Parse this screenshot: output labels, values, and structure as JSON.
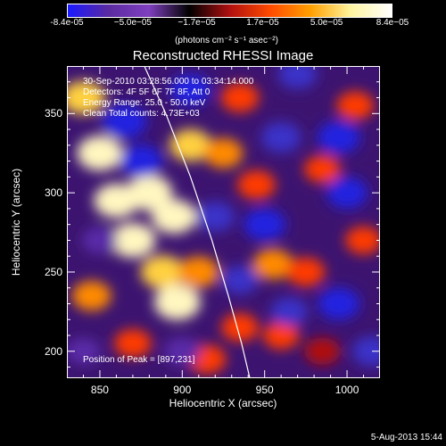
{
  "chart_data": {
    "type": "heatmap",
    "title": "Reconstructed RHESSI Image",
    "xlabel": "Heliocentric X (arcsec)",
    "ylabel": "Heliocentric Y (arcsec)",
    "xlim": [
      830,
      1020
    ],
    "ylim": [
      183,
      380
    ],
    "x_ticks": [
      "850",
      "900",
      "950",
      "1000"
    ],
    "y_ticks": [
      "200",
      "250",
      "300",
      "350"
    ],
    "x_tick_values": [
      850,
      900,
      950,
      1000
    ],
    "y_tick_values": [
      200,
      250,
      300,
      350
    ],
    "colorbar": {
      "tick_labels": [
        "-8.4e-05",
        "−5.0e−05",
        "−1.7e−05",
        "1.7e−05",
        "5.0e−05",
        "8.4e−05"
      ],
      "tick_values": [
        -8.4e-05,
        -5e-05,
        -1.7e-05,
        1.7e-05,
        5e-05,
        8.4e-05
      ],
      "range": [
        -8.4e-05,
        8.4e-05
      ],
      "unit": "(photons cm⁻² s⁻¹ asec⁻²)",
      "colors": [
        "#1a1aff",
        "#5a2aa0",
        "#8040c0",
        "#000000",
        "#b01010",
        "#ff4a00",
        "#ffa000",
        "#fff5a0",
        "#ffffff"
      ]
    },
    "annotations": [
      "30-Sep-2010 03:28:56.000 to 03:34:14.000",
      "Detectors: 4F 5F 6F 7F 8F, Att 0",
      "Energy Range: 25.0 - 50.0 keV",
      "Clean     Total counts: 4.73E+03"
    ],
    "peak_label": "Position of Peak = [897,231]",
    "peak_position": [
      897,
      231
    ],
    "limb_curve": {
      "x": [
        877,
        890,
        905,
        918,
        928,
        936,
        941
      ],
      "y": [
        380,
        350,
        310,
        270,
        235,
        205,
        183
      ]
    },
    "blobs": [
      {
        "x": 840,
        "y": 360,
        "v": 0.85
      },
      {
        "x": 850,
        "y": 325,
        "v": 0.95
      },
      {
        "x": 860,
        "y": 295,
        "v": 0.9
      },
      {
        "x": 870,
        "y": 270,
        "v": 0.95
      },
      {
        "x": 880,
        "y": 300,
        "v": 1.0
      },
      {
        "x": 895,
        "y": 285,
        "v": 0.9
      },
      {
        "x": 888,
        "y": 250,
        "v": 0.85
      },
      {
        "x": 897,
        "y": 231,
        "v": 1.0
      },
      {
        "x": 910,
        "y": 250,
        "v": 0.7
      },
      {
        "x": 905,
        "y": 330,
        "v": 0.75
      },
      {
        "x": 925,
        "y": 325,
        "v": 0.6
      },
      {
        "x": 935,
        "y": 360,
        "v": 0.55
      },
      {
        "x": 945,
        "y": 305,
        "v": 0.55
      },
      {
        "x": 955,
        "y": 255,
        "v": 0.65
      },
      {
        "x": 975,
        "y": 250,
        "v": 0.55
      },
      {
        "x": 935,
        "y": 215,
        "v": 0.5
      },
      {
        "x": 870,
        "y": 205,
        "v": 0.5
      },
      {
        "x": 985,
        "y": 315,
        "v": 0.45
      },
      {
        "x": 1005,
        "y": 355,
        "v": 0.5
      },
      {
        "x": 1010,
        "y": 270,
        "v": 0.45
      },
      {
        "x": 960,
        "y": 210,
        "v": 0.45
      },
      {
        "x": 845,
        "y": 235,
        "v": 0.6
      },
      {
        "x": 915,
        "y": 195,
        "v": 0.55
      },
      {
        "x": 985,
        "y": 200,
        "v": 0.4
      },
      {
        "x": 865,
        "y": 345,
        "v": -0.9
      },
      {
        "x": 875,
        "y": 320,
        "v": -0.8
      },
      {
        "x": 905,
        "y": 365,
        "v": -0.7
      },
      {
        "x": 920,
        "y": 285,
        "v": -0.6
      },
      {
        "x": 950,
        "y": 280,
        "v": -0.75
      },
      {
        "x": 960,
        "y": 335,
        "v": -0.65
      },
      {
        "x": 995,
        "y": 335,
        "v": -0.8
      },
      {
        "x": 1000,
        "y": 300,
        "v": -0.7
      },
      {
        "x": 995,
        "y": 230,
        "v": -0.75
      },
      {
        "x": 970,
        "y": 375,
        "v": -0.6
      },
      {
        "x": 935,
        "y": 245,
        "v": -0.5
      },
      {
        "x": 850,
        "y": 270,
        "v": -0.4
      },
      {
        "x": 900,
        "y": 200,
        "v": -0.45
      },
      {
        "x": 1015,
        "y": 200,
        "v": -0.6
      },
      {
        "x": 965,
        "y": 225,
        "v": -0.5
      },
      {
        "x": 840,
        "y": 200,
        "v": -0.35
      }
    ]
  },
  "footer": {
    "date_stamp": "5-Aug-2013 15:44"
  }
}
